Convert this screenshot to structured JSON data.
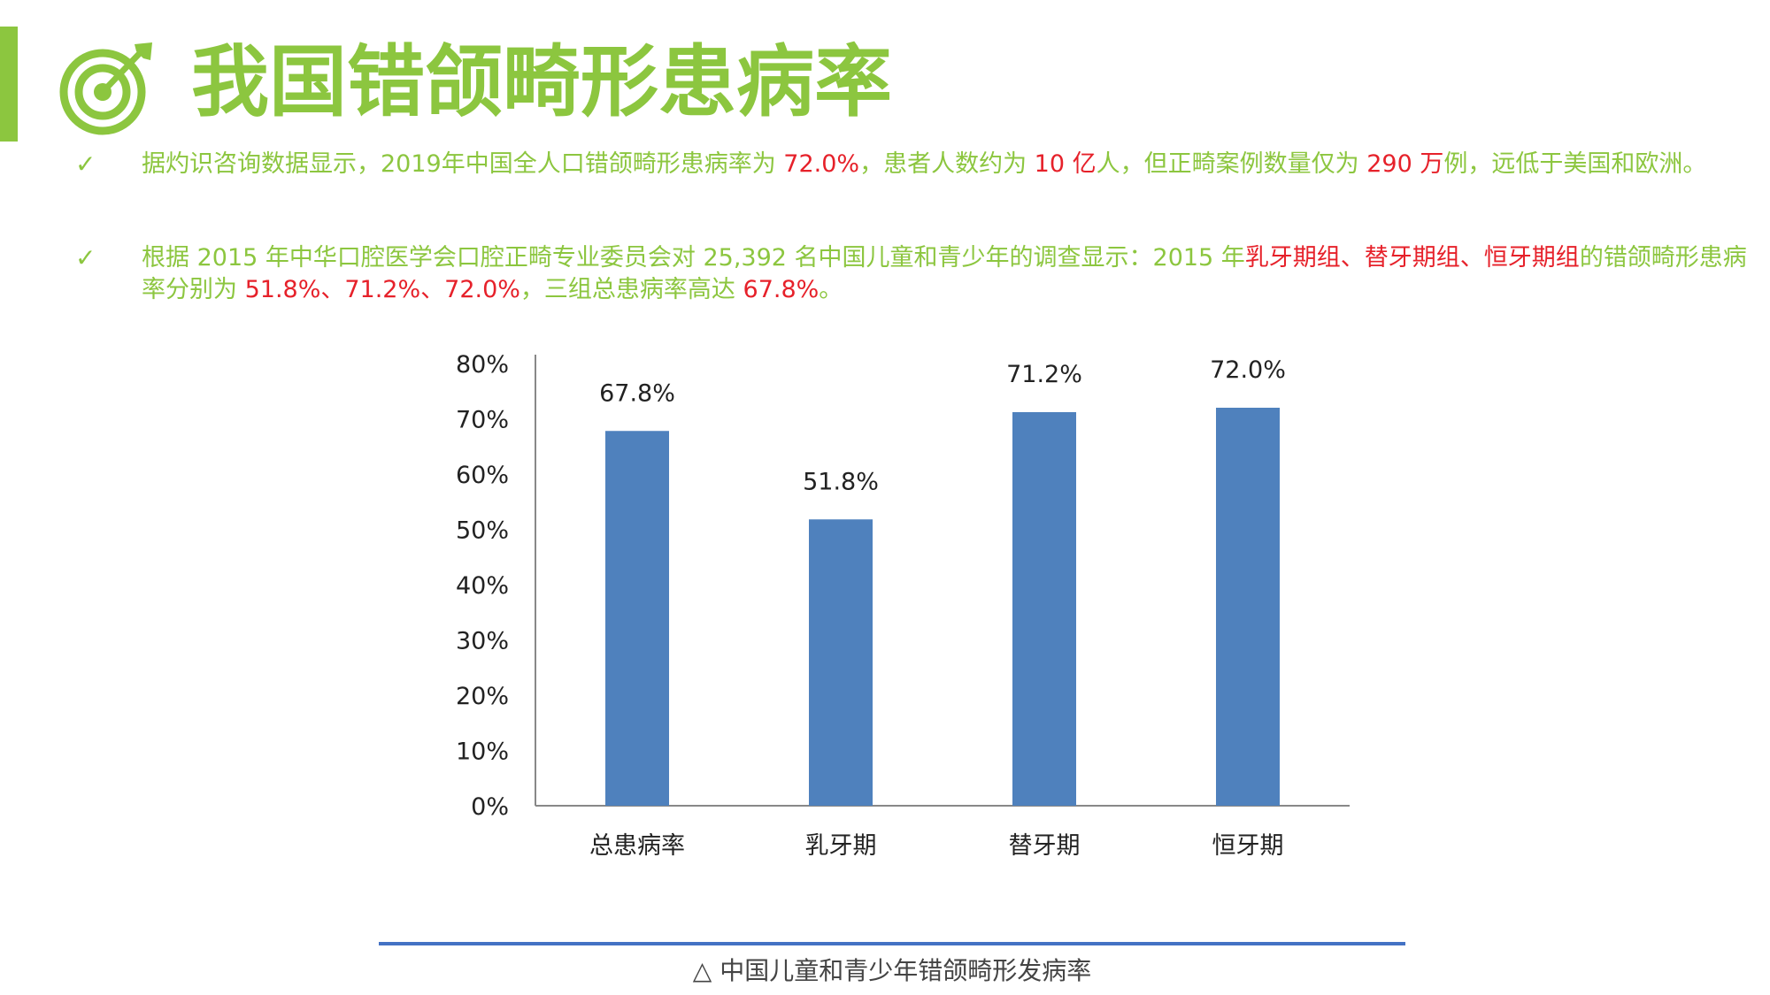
{
  "title": "我国错颌畸形患病率",
  "bullets": [
    [
      {
        "t": "据灼识咨询数据显示，2019年中国全人口错颌畸形患病率为 "
      },
      {
        "t": "72.0%",
        "hl": true
      },
      {
        "t": "，患者人数约为 "
      },
      {
        "t": "10 亿",
        "hl": true
      },
      {
        "t": "人，但正畸案例数量仅为 "
      },
      {
        "t": "290 万",
        "hl": true
      },
      {
        "t": "例，远低于美国和欧洲。"
      }
    ],
    [
      {
        "t": "根据 2015 年中华口腔医学会口腔正畸专业委员会对 25,392 名中国儿童和青少年的调查显示：2015 年"
      },
      {
        "t": "乳牙期组、替牙期组、恒牙期组",
        "hl": true
      },
      {
        "t": "的错颌畸形患病率分别为 "
      },
      {
        "t": "51.8%、71.2%、72.0%",
        "hl": true
      },
      {
        "t": "，三组总患病率高达 "
      },
      {
        "t": "67.8%",
        "hl": true
      },
      {
        "t": "。"
      }
    ]
  ],
  "caption": "△ 中国儿童和青少年错颌畸形发病率",
  "colors": {
    "accent": "#8cc63f",
    "highlight": "#e6212a",
    "bar": "#4f81bd",
    "caption_line": "#4472c4"
  },
  "icons": {
    "title": "target-arrow-icon",
    "bullet": "check-icon"
  },
  "chart_data": {
    "type": "bar",
    "categories": [
      "总患病率",
      "乳牙期",
      "替牙期",
      "恒牙期"
    ],
    "values": [
      67.8,
      51.8,
      71.2,
      72.0
    ],
    "data_labels": [
      "67.8%",
      "51.8%",
      "71.2%",
      "72.0%"
    ],
    "yticks": [
      "0%",
      "10%",
      "20%",
      "30%",
      "40%",
      "50%",
      "60%",
      "70%",
      "80%"
    ],
    "ylim": [
      0,
      80
    ],
    "grid": false,
    "legend": "none"
  }
}
